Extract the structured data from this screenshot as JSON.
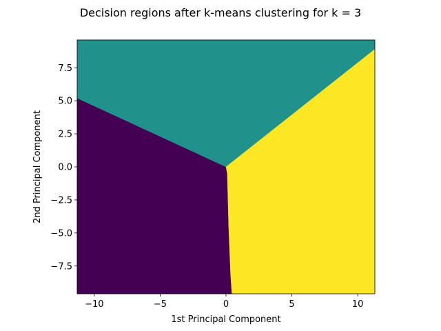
{
  "chart_data": {
    "type": "heatmap",
    "title": "Decision regions after k-means clustering for k = 3",
    "xlabel": "1st Principal Component",
    "ylabel": "2nd Principal Component",
    "xlim": [
      -11.3,
      11.3
    ],
    "ylim": [
      -9.6,
      9.6
    ],
    "xticks": [
      -10,
      -5,
      0,
      5,
      10
    ],
    "xtick_labels": [
      "−10",
      "−5",
      "0",
      "5",
      "10"
    ],
    "yticks": [
      -7.5,
      -5.0,
      -2.5,
      0.0,
      2.5,
      5.0,
      7.5
    ],
    "ytick_labels": [
      "−7.5",
      "−5.0",
      "−2.5",
      "0.0",
      "2.5",
      "5.0",
      "7.5"
    ],
    "grid": false,
    "legend": false,
    "clusters": [
      {
        "color": "#440154"
      },
      {
        "color": "#21918c"
      },
      {
        "color": "#fde725"
      }
    ],
    "regions": [
      {
        "cluster": 0,
        "polygon": [
          [
            -11.3,
            5.2
          ],
          [
            0.0,
            0.0
          ],
          [
            0.1,
            -0.5
          ],
          [
            0.2,
            -4.4
          ],
          [
            0.35,
            -8.2
          ],
          [
            0.45,
            -9.6
          ],
          [
            -11.3,
            -9.6
          ]
        ]
      },
      {
        "cluster": 1,
        "polygon": [
          [
            -11.3,
            9.6
          ],
          [
            11.3,
            9.6
          ],
          [
            11.3,
            8.9
          ],
          [
            0.0,
            0.0
          ],
          [
            -11.3,
            5.2
          ]
        ]
      },
      {
        "cluster": 2,
        "polygon": [
          [
            0.0,
            0.0
          ],
          [
            11.3,
            8.9
          ],
          [
            11.3,
            -9.6
          ],
          [
            0.45,
            -9.6
          ],
          [
            0.35,
            -8.2
          ],
          [
            0.2,
            -4.4
          ],
          [
            0.1,
            -0.5
          ]
        ]
      }
    ]
  }
}
